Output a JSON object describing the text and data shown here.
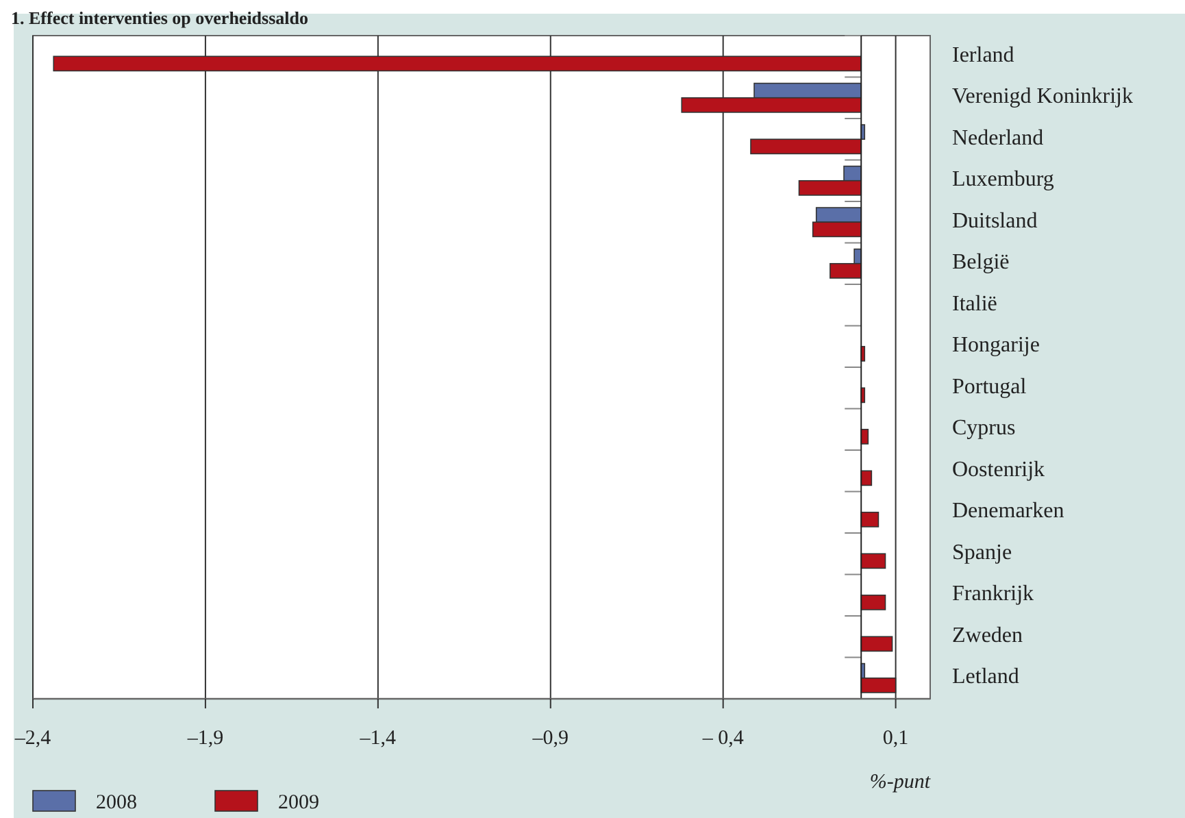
{
  "chart_data": {
    "type": "bar",
    "orientation": "horizontal",
    "title": "1. Effect interventies op overheidssaldo",
    "xlabel": "%-punt",
    "categories": [
      "Ierland",
      "Verenigd Koninkrijk",
      "Nederland",
      "Luxemburg",
      "Duitsland",
      "België",
      "Italië",
      "Hongarije",
      "Portugal",
      "Cyprus",
      "Oostenrijk",
      "Denemarken",
      "Spanje",
      "Frankrijk",
      "Zweden",
      "Letland"
    ],
    "series": [
      {
        "name": "2008",
        "color": "#5a6fa8",
        "values": [
          0,
          -0.31,
          0.01,
          -0.05,
          -0.13,
          -0.02,
          0,
          0,
          0,
          0,
          0,
          0,
          0,
          0,
          0,
          0.01
        ]
      },
      {
        "name": "2009",
        "color": "#b5121b",
        "values": [
          -2.34,
          -0.52,
          -0.32,
          -0.18,
          -0.14,
          -0.09,
          0,
          0.01,
          0.01,
          0.02,
          0.03,
          0.05,
          0.07,
          0.07,
          0.09,
          0.1
        ]
      }
    ],
    "xlim": [
      -2.4,
      0.2
    ],
    "xticks": [
      {
        "value": -2.4,
        "label": "–2,4"
      },
      {
        "value": -1.9,
        "label": "–1,9"
      },
      {
        "value": -1.4,
        "label": "–1,4"
      },
      {
        "value": -0.9,
        "label": "–0,9"
      },
      {
        "value": -0.4,
        "label": "– 0,4"
      },
      {
        "value": 0.1,
        "label": "0,1"
      }
    ],
    "grid": "x",
    "legend": "bottom left"
  }
}
